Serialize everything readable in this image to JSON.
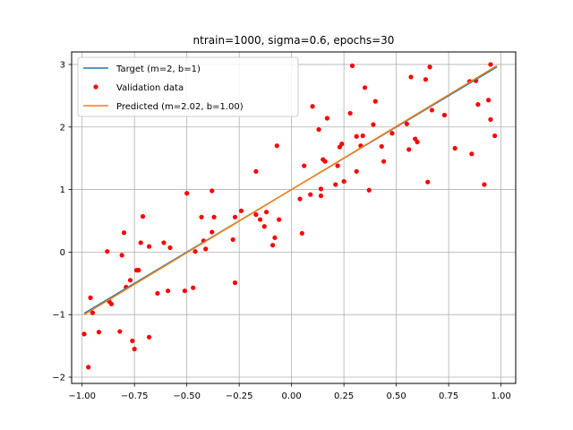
{
  "chart_data": {
    "type": "scatter",
    "title": "ntrain=1000, sigma=0.6, epochs=30",
    "xlabel": "",
    "ylabel": "",
    "xlim": [
      -1.05,
      1.07
    ],
    "ylim": [
      -2.1,
      3.2
    ],
    "grid": true,
    "legend_position": "top-left",
    "x_ticks": [
      "−1.00",
      "−0.75",
      "−0.50",
      "−0.25",
      "0.00",
      "0.25",
      "0.50",
      "0.75",
      "1.00"
    ],
    "x_tick_values": [
      -1.0,
      -0.75,
      -0.5,
      -0.25,
      0.0,
      0.25,
      0.5,
      0.75,
      1.0
    ],
    "y_ticks": [
      "−2",
      "−1",
      "0",
      "1",
      "2",
      "3"
    ],
    "y_tick_values": [
      -2,
      -1,
      0,
      1,
      2,
      3
    ],
    "series": [
      {
        "name": "Target (m=2, b=1)",
        "kind": "line",
        "color": "#1f77b4",
        "x": [
          -0.99,
          0.98
        ],
        "y": [
          -0.98,
          2.96
        ]
      },
      {
        "name": "Validation data",
        "kind": "scatter",
        "color": "#ff0000",
        "x": [
          -0.99,
          -0.97,
          -0.96,
          -0.95,
          -0.92,
          -0.88,
          -0.87,
          -0.86,
          -0.82,
          -0.81,
          -0.8,
          -0.79,
          -0.77,
          -0.76,
          -0.75,
          -0.74,
          -0.73,
          -0.72,
          -0.71,
          -0.68,
          -0.68,
          -0.64,
          -0.61,
          -0.59,
          -0.58,
          -0.51,
          -0.5,
          -0.47,
          -0.46,
          -0.43,
          -0.42,
          -0.41,
          -0.38,
          -0.38,
          -0.37,
          -0.28,
          -0.27,
          -0.27,
          -0.24,
          -0.17,
          -0.17,
          -0.15,
          -0.13,
          -0.12,
          -0.09,
          -0.08,
          -0.07,
          -0.06,
          0.04,
          0.05,
          0.06,
          0.09,
          0.1,
          0.13,
          0.14,
          0.14,
          0.15,
          0.16,
          0.17,
          0.21,
          0.22,
          0.23,
          0.24,
          0.25,
          0.28,
          0.29,
          0.31,
          0.31,
          0.33,
          0.34,
          0.35,
          0.37,
          0.39,
          0.4,
          0.43,
          0.44,
          0.48,
          0.55,
          0.56,
          0.57,
          0.59,
          0.6,
          0.64,
          0.65,
          0.66,
          0.67,
          0.73,
          0.78,
          0.85,
          0.86,
          0.88,
          0.89,
          0.92,
          0.94,
          0.95,
          0.95,
          0.97
        ],
        "y": [
          -1.31,
          -1.84,
          -0.73,
          -0.97,
          -1.28,
          0.01,
          -0.79,
          -0.83,
          -1.27,
          -0.05,
          0.31,
          -0.56,
          -0.45,
          -1.42,
          -1.55,
          -0.29,
          -0.29,
          0.15,
          0.57,
          0.09,
          -1.36,
          -0.66,
          0.15,
          -0.62,
          0.07,
          -0.62,
          0.94,
          -0.57,
          0.01,
          0.56,
          0.18,
          0.05,
          0.32,
          0.98,
          0.56,
          0.2,
          0.56,
          -0.49,
          0.66,
          1.29,
          0.6,
          0.52,
          0.41,
          0.64,
          0.11,
          0.23,
          1.7,
          0.52,
          0.85,
          0.3,
          1.38,
          0.92,
          2.33,
          1.96,
          1.01,
          0.9,
          1.48,
          1.45,
          2.14,
          1.08,
          1.38,
          1.68,
          1.73,
          1.13,
          2.22,
          2.98,
          1.85,
          1.29,
          1.7,
          1.86,
          2.63,
          0.99,
          2.04,
          2.41,
          1.69,
          1.45,
          1.9,
          2.05,
          1.64,
          2.8,
          1.81,
          1.76,
          2.76,
          1.12,
          2.96,
          2.27,
          2.19,
          1.66,
          2.73,
          1.57,
          2.74,
          2.36,
          1.08,
          2.43,
          2.12,
          3.0,
          1.86
        ]
      },
      {
        "name": "Predicted (m=2.02, b=1.00)",
        "kind": "line",
        "color": "#ff7f0e",
        "x": [
          -0.99,
          0.98
        ],
        "y": [
          -1.0,
          2.98
        ]
      }
    ]
  }
}
